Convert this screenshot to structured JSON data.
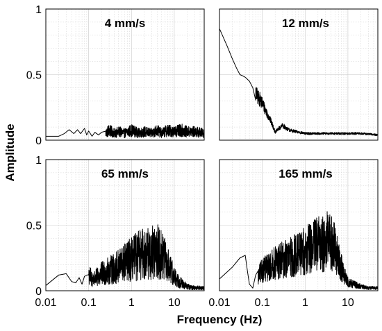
{
  "chart_data": {
    "type": "line",
    "xlabel": "Frequency (Hz)",
    "ylabel": "Amplitude",
    "xscale": "log",
    "xlim": [
      0.01,
      50
    ],
    "ylim": [
      0,
      1
    ],
    "x_ticks": [
      "0.01",
      "0.1",
      "1",
      "10"
    ],
    "x_tick_values": [
      0.01,
      0.1,
      1,
      10
    ],
    "y_ticks": [
      "0",
      "0.5",
      "1"
    ],
    "y_tick_values": [
      0,
      0.5,
      1
    ],
    "grid": true,
    "layout": "2x2",
    "panels": [
      {
        "title": "4 mm/s",
        "series": [
          {
            "x": [
              0.01,
              0.02,
              0.027,
              0.035,
              0.045,
              0.055,
              0.065,
              0.08,
              0.09,
              0.1,
              0.12,
              0.14,
              0.17,
              0.2,
              0.25,
              0.3,
              0.4,
              0.5,
              0.7,
              1,
              1.5,
              2,
              3,
              4,
              5,
              7,
              10,
              15,
              20,
              30,
              50
            ],
            "y": [
              0.03,
              0.03,
              0.05,
              0.08,
              0.05,
              0.08,
              0.05,
              0.09,
              0.04,
              0.07,
              0.03,
              0.06,
              0.04,
              0.06,
              0.05,
              0.07,
              0.05,
              0.06,
              0.05,
              0.07,
              0.05,
              0.06,
              0.05,
              0.07,
              0.05,
              0.07,
              0.06,
              0.07,
              0.06,
              0.06,
              0.05
            ],
            "noise": 0.055,
            "noise_from": 0.25
          }
        ]
      },
      {
        "title": "12 mm/s",
        "series": [
          {
            "x": [
              0.01,
              0.015,
              0.02,
              0.025,
              0.03,
              0.035,
              0.04,
              0.05,
              0.06,
              0.07,
              0.08,
              0.09,
              0.1,
              0.12,
              0.15,
              0.18,
              0.2,
              0.25,
              0.3,
              0.4,
              0.5,
              0.7,
              1,
              2,
              5,
              10,
              20,
              50
            ],
            "y": [
              0.85,
              0.72,
              0.62,
              0.55,
              0.5,
              0.49,
              0.48,
              0.45,
              0.4,
              0.35,
              0.32,
              0.3,
              0.28,
              0.22,
              0.16,
              0.1,
              0.06,
              0.09,
              0.11,
              0.08,
              0.07,
              0.06,
              0.05,
              0.05,
              0.05,
              0.05,
              0.05,
              0.04
            ],
            "noise": 0.07,
            "noise_from": 0.07
          }
        ]
      },
      {
        "title": "65 mm/s",
        "series": [
          {
            "x": [
              0.01,
              0.02,
              0.03,
              0.04,
              0.05,
              0.06,
              0.07,
              0.08,
              0.1,
              0.12,
              0.15,
              0.2,
              0.3,
              0.5,
              0.7,
              1,
              1.5,
              2,
              3,
              4,
              5,
              6,
              7,
              10,
              15,
              20,
              30,
              50
            ],
            "y": [
              0.04,
              0.12,
              0.13,
              0.07,
              0.06,
              0.1,
              0.05,
              0.11,
              0.12,
              0.08,
              0.09,
              0.12,
              0.14,
              0.17,
              0.2,
              0.22,
              0.25,
              0.26,
              0.27,
              0.28,
              0.25,
              0.22,
              0.18,
              0.1,
              0.05,
              0.03,
              0.02,
              0.02
            ],
            "noise": 0.24,
            "noise_from": 0.1
          }
        ]
      },
      {
        "title": "165 mm/s",
        "series": [
          {
            "x": [
              0.01,
              0.02,
              0.03,
              0.04,
              0.045,
              0.05,
              0.06,
              0.07,
              0.08,
              0.1,
              0.15,
              0.2,
              0.3,
              0.5,
              0.7,
              1,
              1.5,
              2,
              3,
              3.5,
              4,
              5,
              6,
              8,
              10,
              20,
              30,
              50
            ],
            "y": [
              0.09,
              0.18,
              0.25,
              0.27,
              0.15,
              0.05,
              0.02,
              0.12,
              0.1,
              0.15,
              0.17,
              0.2,
              0.22,
              0.24,
              0.27,
              0.28,
              0.32,
              0.33,
              0.35,
              0.36,
              0.34,
              0.3,
              0.22,
              0.12,
              0.06,
              0.03,
              0.02,
              0.02
            ],
            "noise": 0.26,
            "noise_from": 0.08
          }
        ]
      }
    ]
  }
}
